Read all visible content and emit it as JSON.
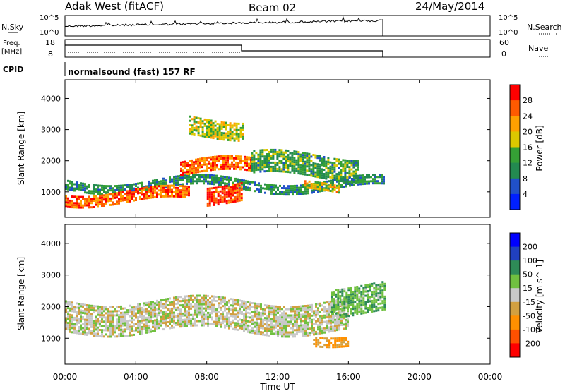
{
  "header": {
    "station": "Adak West (fitACF)",
    "beam": "Beam 02",
    "date": "24/May/2014"
  },
  "panels": {
    "nsky": {
      "left_label": "N.Sky",
      "ticks": [
        "10^5",
        "10^0"
      ],
      "right_label": "N.Search",
      "right_ticks": [
        "10^5",
        "10^0"
      ]
    },
    "freq": {
      "left_label_1": "Freq.",
      "left_label_2": "[MHz]",
      "ticks": [
        "18",
        "8"
      ],
      "right_label": "Nave",
      "right_ticks": [
        "60",
        "0"
      ]
    },
    "cpid": {
      "label": "CPID",
      "mode": "normalsound (fast) 157 RF"
    }
  },
  "colors": {
    "power_scale": [
      "#0020ff",
      "#2050c8",
      "#238a50",
      "#35a035",
      "#dcc800",
      "#ffa000",
      "#ff5a00",
      "#ff0000"
    ],
    "velocity_scale": [
      "#ff0000",
      "#ff5000",
      "#ff9000",
      "#d2a040",
      "#c8c8c8",
      "#70c040",
      "#2e8b57",
      "#2040c0",
      "#0000ff"
    ]
  },
  "chart_data": [
    {
      "type": "heatmap",
      "title": "Power",
      "ylabel": "Slant Range [km]",
      "xlabel": "Time UT",
      "x_ticks": [
        "00:00",
        "04:00",
        "08:00",
        "12:00",
        "16:00",
        "20:00",
        "00:00"
      ],
      "y_ticks": [
        1000,
        2000,
        3000,
        4000
      ],
      "ylim": [
        180,
        4600
      ],
      "xlim_hours": [
        0,
        24
      ],
      "data_extent_hours": [
        0,
        18
      ],
      "colorbar": {
        "label": "Power [dB]",
        "ticks": [
          "4",
          "8",
          "12",
          "16",
          "20",
          "24",
          "28"
        ],
        "range": [
          0,
          30
        ]
      },
      "echo_bands": [
        {
          "t_start": 0.0,
          "t_end": 18.0,
          "range_start": 1100,
          "range_end": 1400,
          "typical_power": 10
        },
        {
          "t_start": 0.0,
          "t_end": 7.0,
          "range_start": 650,
          "range_end": 1050,
          "typical_power": 24
        },
        {
          "t_start": 8.0,
          "t_end": 10.0,
          "range_start": 700,
          "range_end": 1300,
          "typical_power": 26
        },
        {
          "t_start": 6.5,
          "t_end": 10.5,
          "range_start": 1550,
          "range_end": 2000,
          "typical_power": 24
        },
        {
          "t_start": 10.5,
          "t_end": 16.5,
          "range_start": 1500,
          "range_end": 2200,
          "typical_power": 12
        },
        {
          "t_start": 13.5,
          "t_end": 15.5,
          "range_start": 950,
          "range_end": 1200,
          "typical_power": 18
        },
        {
          "t_start": 7.0,
          "t_end": 10.0,
          "range_start": 2800,
          "range_end": 3400,
          "typical_power": 16
        }
      ]
    },
    {
      "type": "heatmap",
      "title": "Velocity",
      "ylabel": "Slant Range [km]",
      "xlabel": "Time UT",
      "x_ticks": [
        "00:00",
        "04:00",
        "08:00",
        "12:00",
        "16:00",
        "20:00",
        "00:00"
      ],
      "y_ticks": [
        1000,
        2000,
        3000,
        4000
      ],
      "ylim": [
        180,
        4600
      ],
      "xlim_hours": [
        0,
        24
      ],
      "data_extent_hours": [
        0,
        18
      ],
      "colorbar": {
        "label": "Velocity [m s^-1]",
        "ticks": [
          "200",
          "100",
          "50",
          "15",
          "-15",
          "-50",
          "-100",
          "-200"
        ],
        "range": [
          -250,
          250
        ]
      },
      "echo_bands": [
        {
          "t_start": 0.0,
          "t_end": 16.0,
          "range_start": 1200,
          "range_end": 2200,
          "typical_velocity": 0
        },
        {
          "t_start": 14.0,
          "t_end": 16.0,
          "range_start": 900,
          "range_end": 1200,
          "typical_velocity": -60
        },
        {
          "t_start": 15.0,
          "t_end": 18.0,
          "range_start": 1800,
          "range_end": 2700,
          "typical_velocity": 40
        }
      ]
    }
  ],
  "x_axis_title": "Time UT"
}
